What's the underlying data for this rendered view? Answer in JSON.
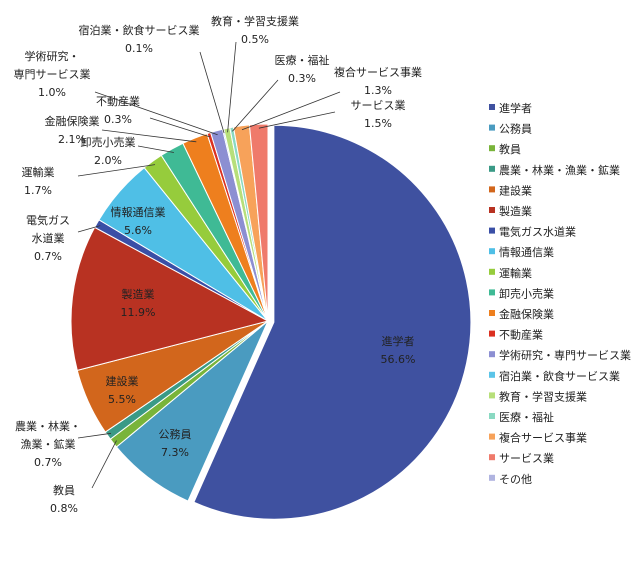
{
  "chart_data": {
    "type": "pie",
    "title": "",
    "start_angle_deg": 0,
    "direction": "clockwise",
    "legend_position": "right",
    "slices": [
      {
        "name": "進学者",
        "value": 56.6,
        "label": "56.6%",
        "color": "#3f51a0",
        "explode": true
      },
      {
        "name": "公務員",
        "value": 7.3,
        "label": "7.3%",
        "color": "#4a9bc0"
      },
      {
        "name": "教員",
        "value": 0.8,
        "label": "0.8%",
        "color": "#79b43a"
      },
      {
        "name": "農業・林業・漁業・鉱業",
        "value": 0.7,
        "label": "0.7%",
        "color": "#3a9a86"
      },
      {
        "name": "建設業",
        "value": 5.5,
        "label": "5.5%",
        "color": "#d2661c"
      },
      {
        "name": "製造業",
        "value": 11.9,
        "label": "11.9%",
        "color": "#b83222"
      },
      {
        "name": "電気ガス水道業",
        "value": 0.7,
        "label": "0.7%",
        "color": "#3a4fa6"
      },
      {
        "name": "情報通信業",
        "value": 5.6,
        "label": "5.6%",
        "color": "#4fbfe6"
      },
      {
        "name": "運輸業",
        "value": 1.7,
        "label": "1.7%",
        "color": "#96cc3c"
      },
      {
        "name": "卸売小売業",
        "value": 2.0,
        "label": "2.0%",
        "color": "#3fba95"
      },
      {
        "name": "金融保険業",
        "value": 2.1,
        "label": "2.1%",
        "color": "#ee7f1e"
      },
      {
        "name": "不動産業",
        "value": 0.3,
        "label": "0.3%",
        "color": "#db3020"
      },
      {
        "name": "学術研究・専門サービス業",
        "value": 1.0,
        "label": "1.0%",
        "color": "#8c8fd2"
      },
      {
        "name": "宿泊業・飲食サービス業",
        "value": 0.1,
        "label": "0.1%",
        "color": "#5bc4e8"
      },
      {
        "name": "教育・学習支援業",
        "value": 0.5,
        "label": "0.5%",
        "color": "#b7df7a"
      },
      {
        "name": "医療・福祉",
        "value": 0.3,
        "label": "0.3%",
        "color": "#8ad9c2"
      },
      {
        "name": "複合サービス事業",
        "value": 1.3,
        "label": "1.3%",
        "color": "#f7a25a"
      },
      {
        "name": "サービス業",
        "value": 1.5,
        "label": "1.5%",
        "color": "#ef7a6b"
      },
      {
        "name": "その他",
        "value": 0.0,
        "label": "",
        "color": "#b0b4e0"
      }
    ]
  },
  "callouts": [
    {
      "lines": [
        "宿泊業・飲食サービス業",
        "0.1%"
      ]
    },
    {
      "lines": [
        "教育・学習支援業",
        "0.5%"
      ]
    },
    {
      "lines": [
        "学術研究・",
        "専門サービス業",
        "1.0%"
      ]
    },
    {
      "lines": [
        "医療・福祉",
        "0.3%"
      ]
    },
    {
      "lines": [
        "複合サービス事業",
        "1.3%"
      ]
    },
    {
      "lines": [
        "不動産業",
        "0.3%"
      ]
    },
    {
      "lines": [
        "サービス業",
        "1.5%"
      ]
    },
    {
      "lines": [
        "金融保険業",
        "2.1%"
      ]
    },
    {
      "lines": [
        "卸売小売業",
        "2.0%"
      ]
    },
    {
      "lines": [
        "運輸業",
        "1.7%"
      ]
    },
    {
      "lines": [
        "電気ガス",
        "水道業",
        "0.7%"
      ]
    },
    {
      "lines": [
        "情報通信業",
        "5.6%"
      ]
    },
    {
      "lines": [
        "製造業",
        "11.9%"
      ]
    },
    {
      "lines": [
        "建設業",
        "5.5%"
      ]
    },
    {
      "lines": [
        "農業・林業・",
        "漁業・鉱業",
        "0.7%"
      ]
    },
    {
      "lines": [
        "公務員",
        "7.3%"
      ]
    },
    {
      "lines": [
        "教員",
        "0.8%"
      ]
    },
    {
      "lines": [
        "進学者",
        "56.6%"
      ]
    }
  ]
}
